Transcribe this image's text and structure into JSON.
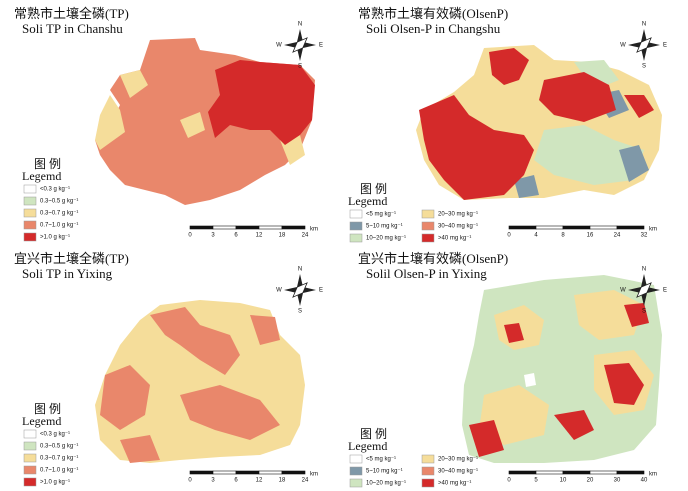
{
  "compass": {
    "n": "N",
    "s": "S",
    "e": "E",
    "w": "W"
  },
  "panels": [
    {
      "title_cn": "常熟市土壤全磷(TP)",
      "title_en": "Soli TP in Chanshu",
      "legend_title_cn": "图 例",
      "legend_title_en": "Legemd",
      "legend": [
        {
          "label": "<0.3 g kg⁻¹",
          "color": "#ffffff"
        },
        {
          "label": "0.3~0.5 g kg⁻¹",
          "color": "#cfe5c0"
        },
        {
          "label": "0.3~0.7 g kg⁻¹",
          "color": "#f5dd9a"
        },
        {
          "label": "0.7~1.0 g kg⁻¹",
          "color": "#e9876b"
        },
        {
          "label": ">1.0 g kg⁻¹",
          "color": "#d42a2a"
        }
      ],
      "scale": [
        "0",
        "3",
        "6",
        "12",
        "18",
        "24"
      ],
      "scale_unit": "km"
    },
    {
      "title_cn": "常熟市土壤有效磷(OlsenP)",
      "title_en": "Soli Olsen-P in Changshu",
      "legend_title_cn": "图 例",
      "legend_title_en": "Legemd",
      "legend": [
        {
          "label": "<5 mg kg⁻¹",
          "color": "#ffffff"
        },
        {
          "label": "5~10 mg kg⁻¹",
          "color": "#7f98a8"
        },
        {
          "label": "10~20 mg kg⁻¹",
          "color": "#cfe5c0"
        },
        {
          "label": "20~30 mg kg⁻¹",
          "color": "#f5dd9a"
        },
        {
          "label": "30~40 mg kg⁻¹",
          "color": "#e9876b"
        },
        {
          "label": ">40 mg kg⁻¹",
          "color": "#d42a2a"
        }
      ],
      "scale": [
        "0",
        "4",
        "8",
        "16",
        "24",
        "32"
      ],
      "scale_unit": "km"
    },
    {
      "title_cn": "宜兴市土壤全磷(TP)",
      "title_en": "Soli TP in Yixing",
      "legend_title_cn": "图 例",
      "legend_title_en": "Legemd",
      "legend": [
        {
          "label": "<0.3 g kg⁻¹",
          "color": "#ffffff"
        },
        {
          "label": "0.3~0.5 g kg⁻¹",
          "color": "#cfe5c0"
        },
        {
          "label": "0.3~0.7 g kg⁻¹",
          "color": "#f5dd9a"
        },
        {
          "label": "0.7~1.0 g kg⁻¹",
          "color": "#e9876b"
        },
        {
          "label": ">1.0 g kg⁻¹",
          "color": "#d42a2a"
        }
      ],
      "scale": [
        "0",
        "3",
        "6",
        "12",
        "18",
        "24"
      ],
      "scale_unit": "km"
    },
    {
      "title_cn": "宜兴市土壤有效磷(OlsenP)",
      "title_en": "Solil Olsen-P in Yixing",
      "legend_title_cn": "图 例",
      "legend_title_en": "Legemd",
      "legend": [
        {
          "label": "<5 mg kg⁻¹",
          "color": "#ffffff"
        },
        {
          "label": "5~10 mg kg⁻¹",
          "color": "#7f98a8"
        },
        {
          "label": "10~20 mg kg⁻¹",
          "color": "#cfe5c0"
        },
        {
          "label": "20~30 mg kg⁻¹",
          "color": "#f5dd9a"
        },
        {
          "label": "30~40 mg kg⁻¹",
          "color": "#e9876b"
        },
        {
          "label": ">40 mg kg⁻¹",
          "color": "#d42a2a"
        }
      ],
      "scale": [
        "0",
        "5",
        "10",
        "20",
        "30",
        "40"
      ],
      "scale_unit": "km"
    }
  ]
}
